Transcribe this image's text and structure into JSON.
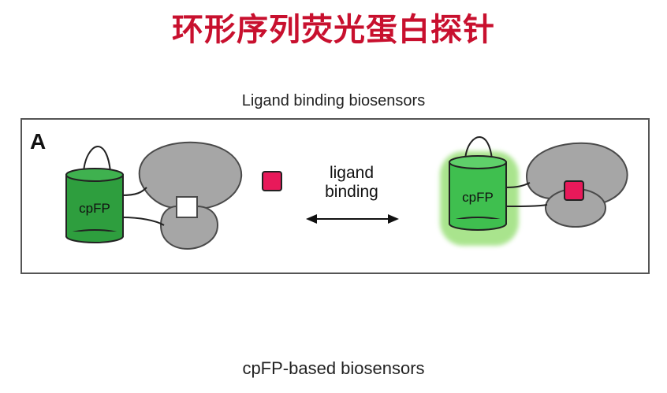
{
  "title": "环形序列荧光蛋白探针",
  "figure_heading": "Ligand binding biosensors",
  "panel_label": "A",
  "left_barrel_label": "cpFP",
  "right_barrel_label": "cpFP",
  "arrow_label_line1": "ligand",
  "arrow_label_line2": "binding",
  "caption": "cpFP-based biosensors",
  "colors": {
    "title": "#c8102e",
    "fluorescent_protein": "#2e9e3e",
    "fluorescent_glow": "#9be07a",
    "binding_domain": "#a6a6a6",
    "ligand": "#e8195a"
  }
}
